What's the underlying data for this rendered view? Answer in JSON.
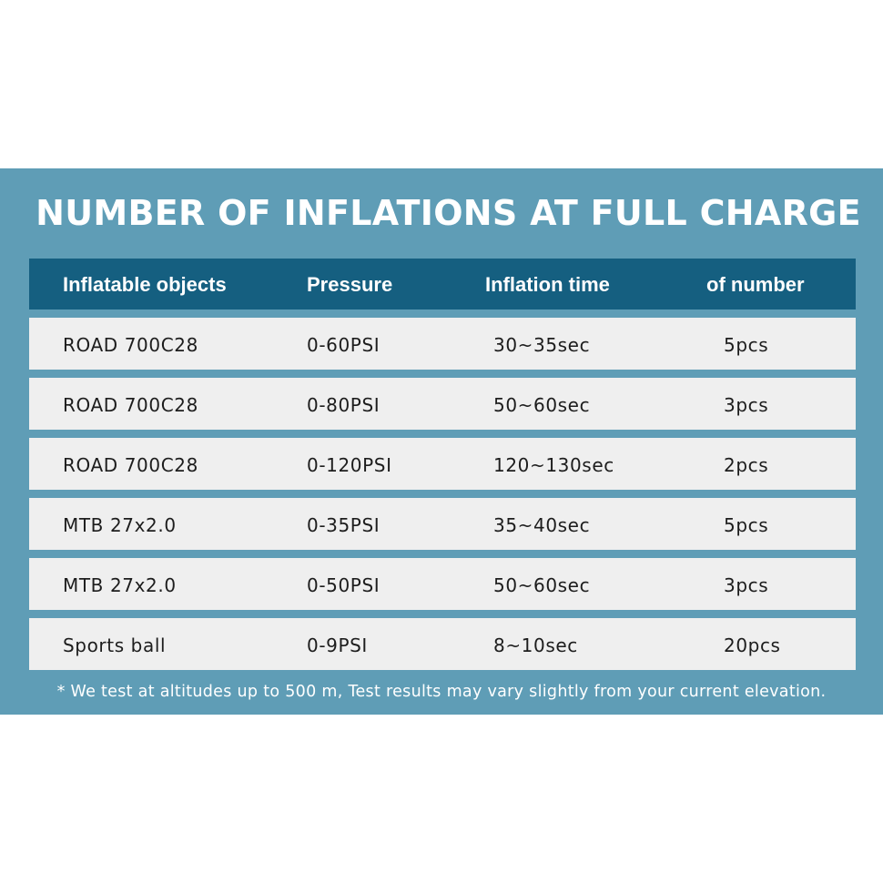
{
  "title": "NUMBER OF INFLATIONS AT FULL CHARGE",
  "table": {
    "headers": [
      "Inflatable objects",
      "Pressure",
      "Inflation time",
      "of number"
    ],
    "rows": [
      [
        "ROAD 700C28",
        "0-60PSI",
        "30~35sec",
        "5pcs"
      ],
      [
        "ROAD 700C28",
        "0-80PSI",
        "50~60sec",
        "3pcs"
      ],
      [
        "ROAD 700C28",
        "0-120PSI",
        "120~130sec",
        "2pcs"
      ],
      [
        "MTB 27x2.0",
        "0-35PSI",
        "35~40sec",
        "5pcs"
      ],
      [
        "MTB 27x2.0",
        "0-50PSI",
        "50~60sec",
        "3pcs"
      ],
      [
        "Sports ball",
        "0-9PSI",
        "8~10sec",
        "20pcs"
      ]
    ]
  },
  "footnote": "* We test at altitudes up to 500 m, Test results may vary slightly from your current elevation.",
  "colors": {
    "panel": "#5f9db6",
    "header": "#155f80",
    "row": "#efefef"
  }
}
